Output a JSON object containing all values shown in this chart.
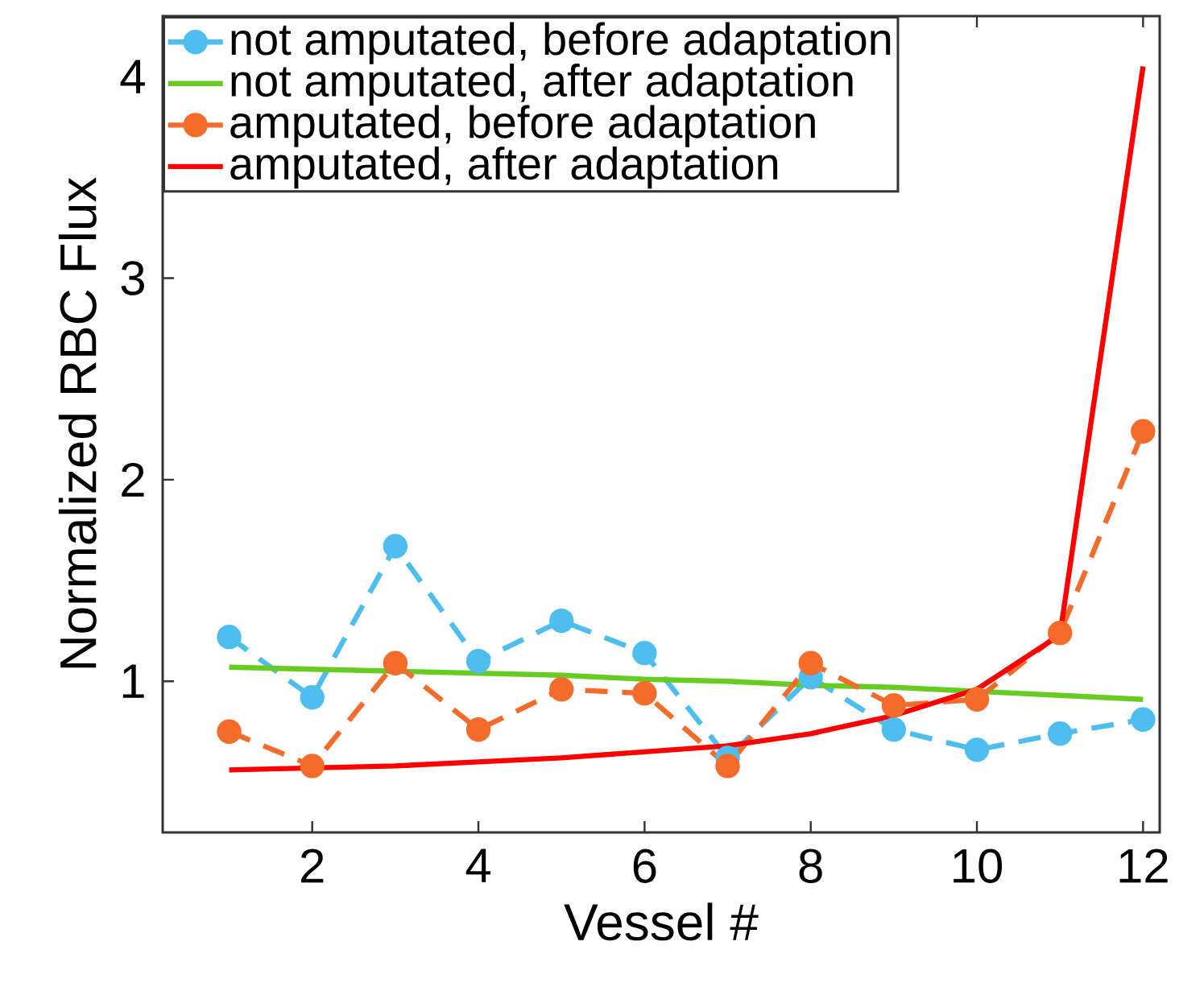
{
  "chart_data": {
    "type": "line",
    "xlabel": "Vessel #",
    "ylabel": "Normalized RBC Flux",
    "x": [
      1,
      2,
      3,
      4,
      5,
      6,
      7,
      8,
      9,
      10,
      11,
      12
    ],
    "series": [
      {
        "name": "not amputated, before adaptation",
        "color": "#4dbeee",
        "marker": "circle",
        "line_style": "dashed",
        "values": [
          1.22,
          0.92,
          1.67,
          1.1,
          1.3,
          1.14,
          0.62,
          1.02,
          0.76,
          0.66,
          0.74,
          0.81
        ]
      },
      {
        "name": "not amputated, after adaptation",
        "color": "#66cc22",
        "marker": "none",
        "line_style": "solid",
        "values": [
          1.07,
          1.06,
          1.05,
          1.04,
          1.03,
          1.01,
          1.0,
          0.98,
          0.97,
          0.95,
          0.93,
          0.91
        ]
      },
      {
        "name": "amputated, before adaptation",
        "color": "#f46b2a",
        "marker": "circle",
        "line_style": "dashed",
        "values": [
          0.75,
          0.58,
          1.09,
          0.76,
          0.96,
          0.94,
          0.58,
          1.09,
          0.88,
          0.91,
          1.24,
          2.24
        ]
      },
      {
        "name": "amputated, after adaptation",
        "color": "#ff0000",
        "marker": "none",
        "line_style": "solid",
        "values": [
          0.56,
          0.57,
          0.58,
          0.6,
          0.62,
          0.65,
          0.68,
          0.74,
          0.83,
          0.96,
          1.23,
          4.05
        ]
      }
    ],
    "xlim": [
      0.2,
      12.2
    ],
    "ylim": [
      0.25,
      4.3
    ],
    "xticks": [
      2,
      4,
      6,
      8,
      10,
      12
    ],
    "yticks": [
      1,
      2,
      3,
      4
    ],
    "grid": false,
    "legend": "top left"
  }
}
